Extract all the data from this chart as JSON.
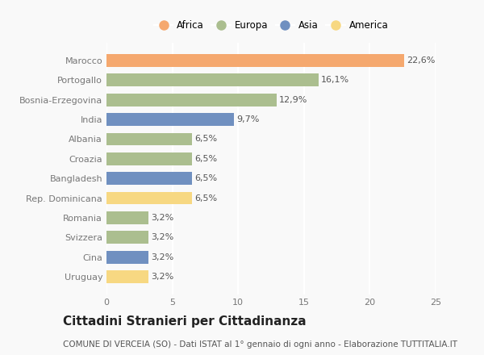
{
  "countries": [
    "Marocco",
    "Portogallo",
    "Bosnia-Erzegovina",
    "India",
    "Albania",
    "Croazia",
    "Bangladesh",
    "Rep. Dominicana",
    "Romania",
    "Svizzera",
    "Cina",
    "Uruguay"
  ],
  "values": [
    22.6,
    16.1,
    12.9,
    9.7,
    6.5,
    6.5,
    6.5,
    6.5,
    3.2,
    3.2,
    3.2,
    3.2
  ],
  "continents": [
    "Africa",
    "Europa",
    "Europa",
    "Asia",
    "Europa",
    "Europa",
    "Asia",
    "America",
    "Europa",
    "Europa",
    "Asia",
    "America"
  ],
  "colors": {
    "Africa": "#F5A86E",
    "Europa": "#ABBE8F",
    "Asia": "#7090C0",
    "America": "#F7D882"
  },
  "legend_order": [
    "Africa",
    "Europa",
    "Asia",
    "America"
  ],
  "xlim": [
    0,
    25
  ],
  "xticks": [
    0,
    5,
    10,
    15,
    20,
    25
  ],
  "title": "Cittadini Stranieri per Cittadinanza",
  "subtitle": "COMUNE DI VERCEIA (SO) - Dati ISTAT al 1° gennaio di ogni anno - Elaborazione TUTTITALIA.IT",
  "bar_height": 0.65,
  "background_color": "#f9f9f9",
  "grid_color": "#ffffff",
  "label_fontsize": 8,
  "tick_fontsize": 8,
  "title_fontsize": 11,
  "subtitle_fontsize": 7.5
}
